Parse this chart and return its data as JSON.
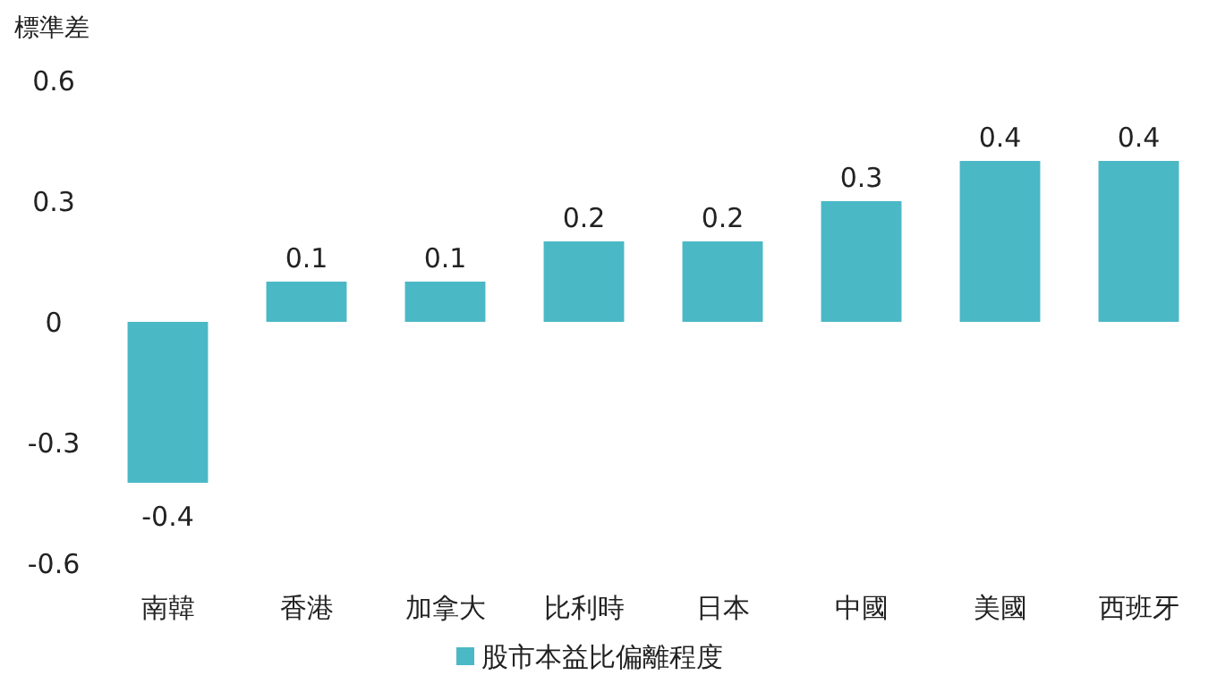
{
  "chart_data": {
    "type": "bar",
    "ylabel": "標準差",
    "categories": [
      "南韓",
      "香港",
      "加拿大",
      "比利時",
      "日本",
      "中國",
      "美國",
      "西班牙"
    ],
    "series": [
      {
        "name": "股市本益比偏離程度",
        "color": "#4bb8c6",
        "values": [
          -0.4,
          0.1,
          0.1,
          0.2,
          0.2,
          0.3,
          0.4,
          0.4
        ]
      }
    ],
    "ylim": [
      -0.6,
      0.6
    ],
    "yticks": [
      -0.6,
      -0.3,
      0,
      0.3,
      0.6
    ],
    "data_labels": true,
    "legend": "bottom",
    "grid": false
  }
}
